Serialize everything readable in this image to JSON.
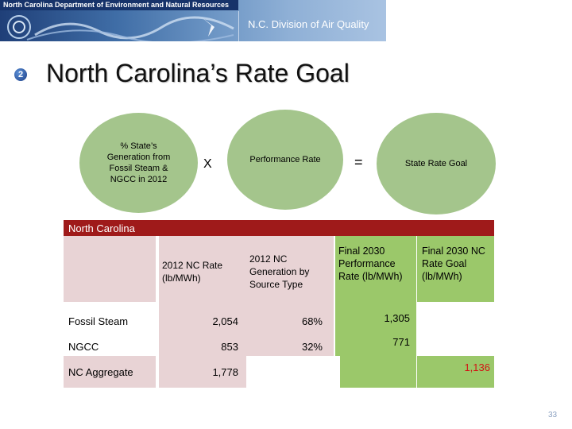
{
  "banner": {
    "department": "North Carolina Department of Environment and Natural Resources",
    "division": "N.C. Division of Air Quality"
  },
  "slide": {
    "number_badge": "2",
    "title": "North Carolina’s Rate Goal",
    "page_number": "33"
  },
  "formula": {
    "term1": "% State’s Generation from Fossil Steam & NGCC in 2012",
    "times": "X",
    "term2": "Performance Rate",
    "equals": "=",
    "result": "State Rate Goal"
  },
  "table": {
    "title": "North Carolina",
    "columns": {
      "rate": "2012 NC Rate (lb/MWh)",
      "generation": "2012 NC Generation by Source Type",
      "performance": "Final 2030 Performance Rate (lb/MWh)",
      "nc_goal": "Final 2030 NC Rate Goal (lb/MWh)"
    },
    "rows": [
      {
        "label": "Fossil Steam",
        "rate": "2,054",
        "generation": "68%",
        "performance": "1,305"
      },
      {
        "label": "NGCC",
        "rate": "853",
        "generation": "32%",
        "performance": "771"
      },
      {
        "label": "NC  Aggregate",
        "rate": "1,778",
        "nc_goal": "1,136"
      }
    ]
  },
  "colors": {
    "circle_fill": "#a4c58c",
    "header_red": "#9f1a1a",
    "cell_pink": "#e8d3d5",
    "cell_green": "#9bc86a",
    "highlight_red": "#d21414"
  }
}
